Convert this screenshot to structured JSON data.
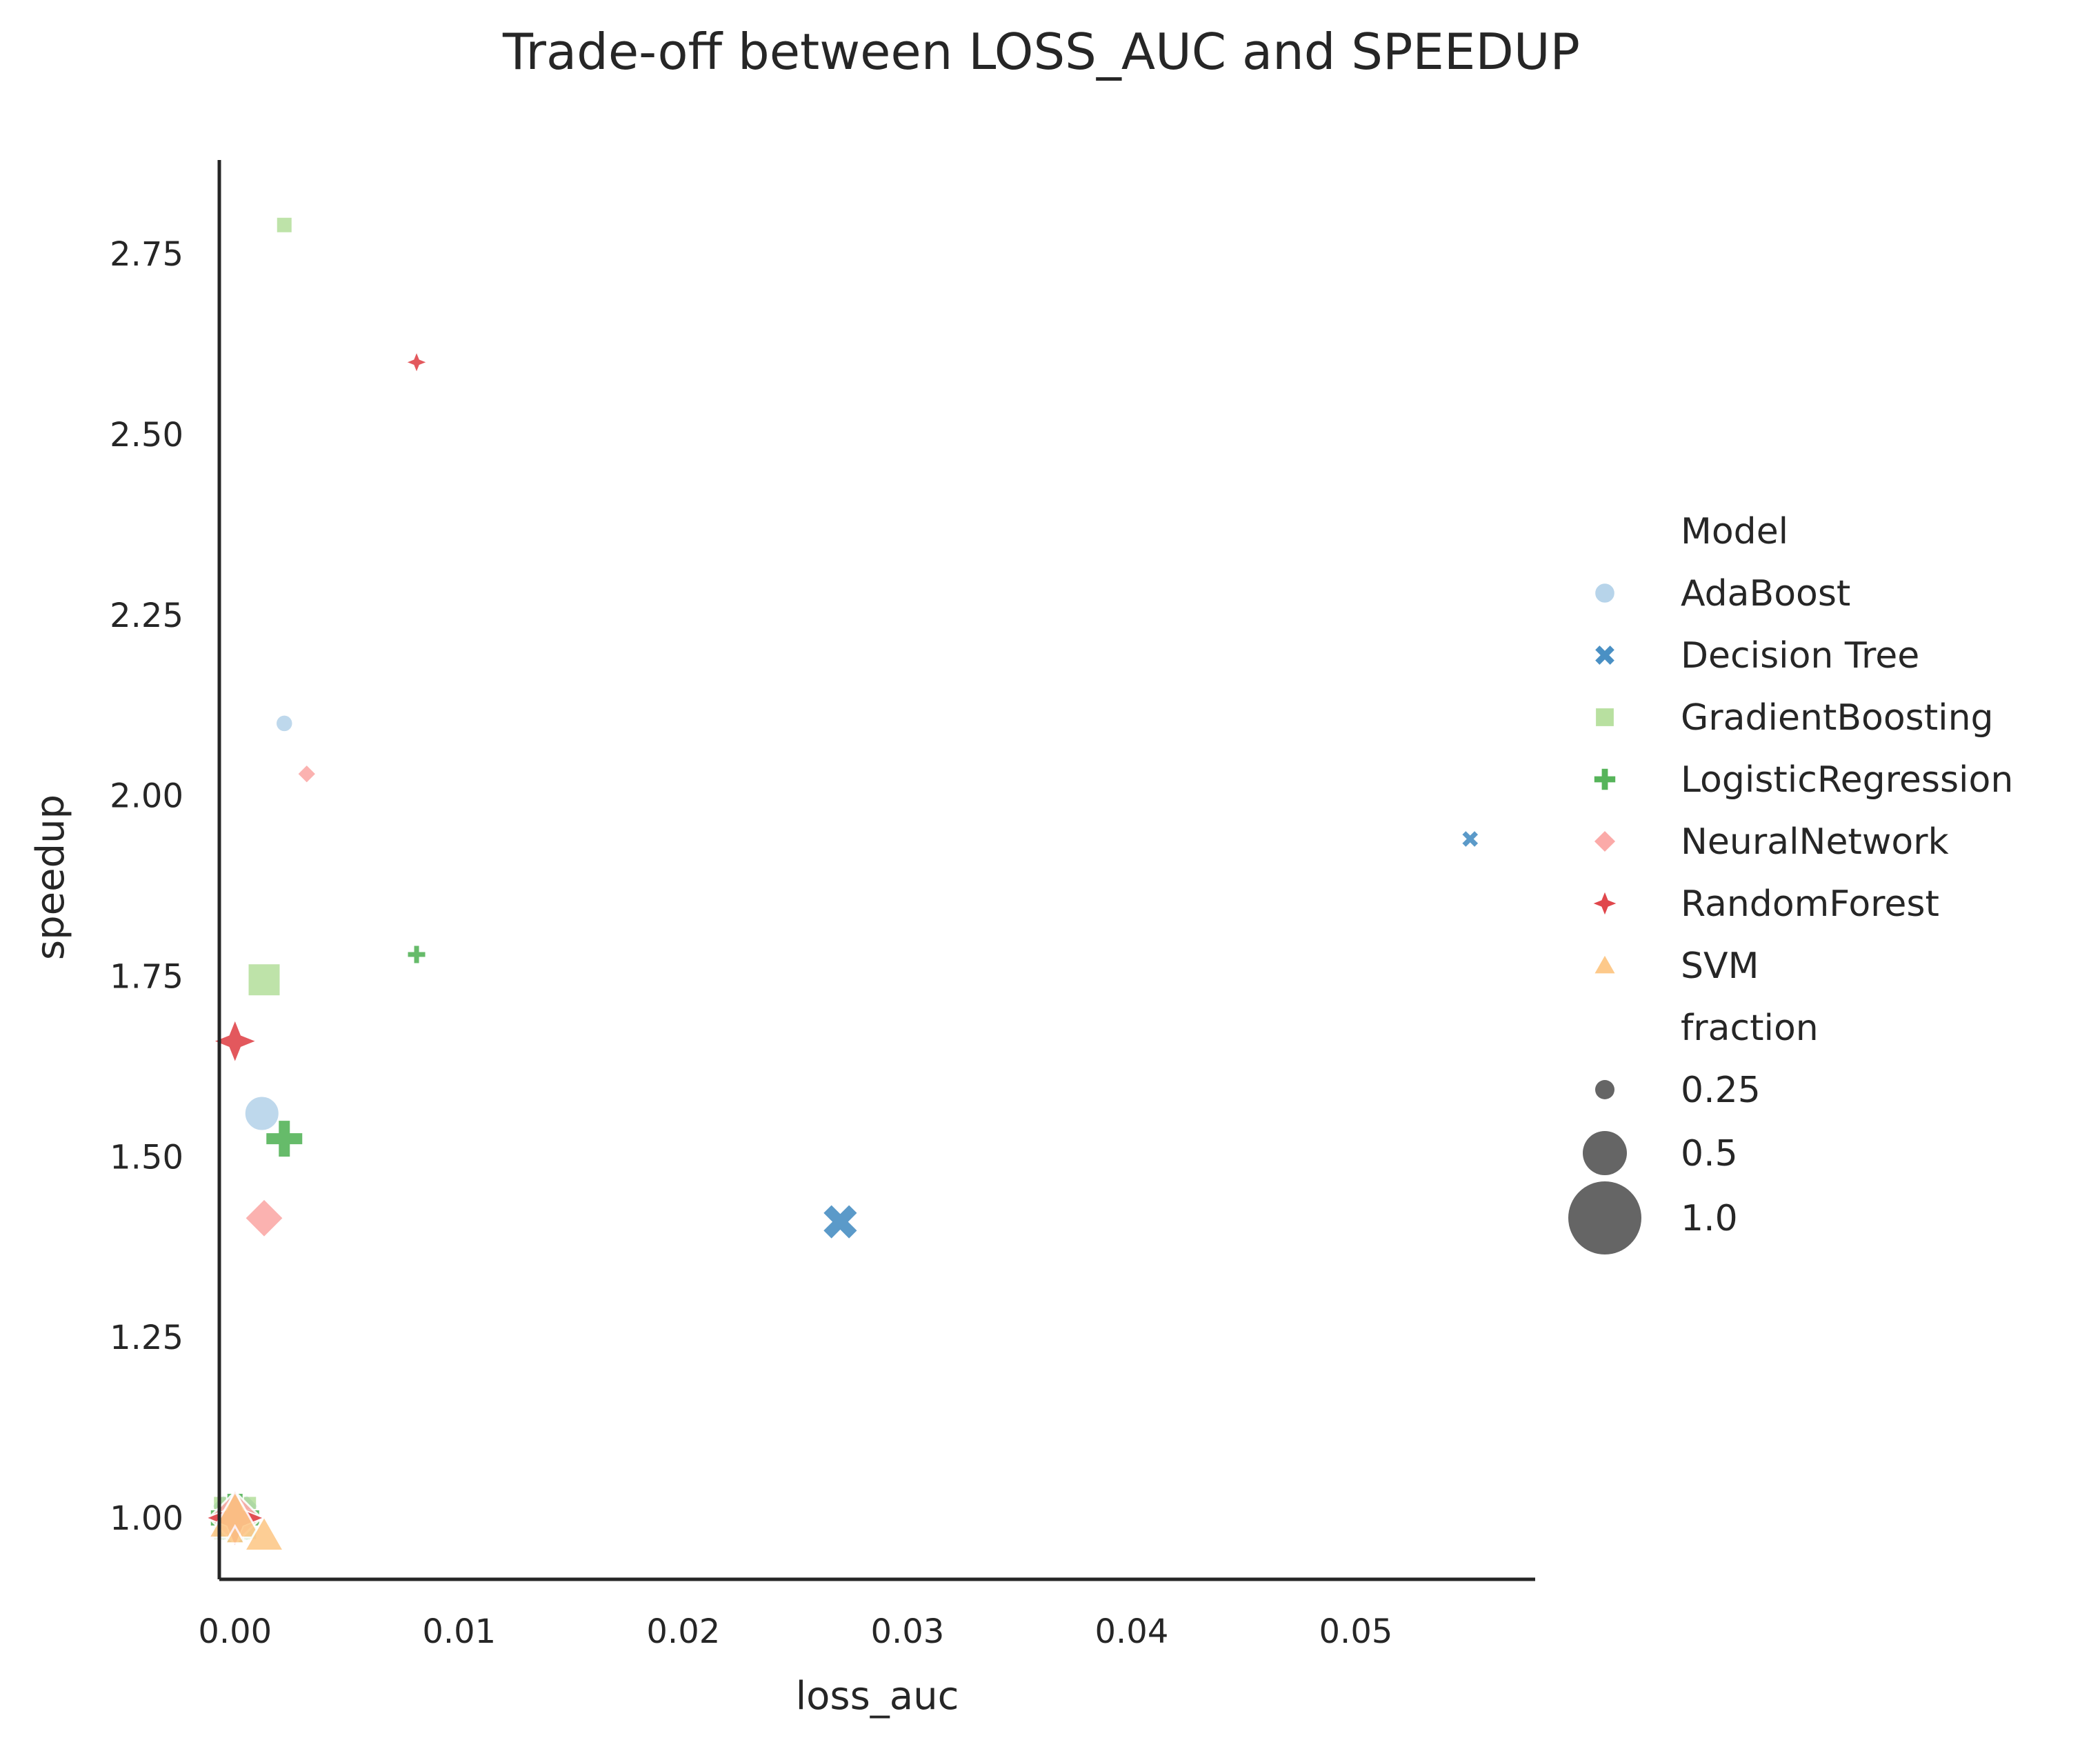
{
  "chart_data": {
    "type": "scatter",
    "title": "Trade-off between LOSS_AUC and SPEEDUP",
    "xlabel": "loss_auc",
    "ylabel": "speedup",
    "xlim": [
      -0.0007,
      0.058
    ],
    "ylim": [
      0.915,
      2.88
    ],
    "xticks": [
      0.0,
      0.01,
      0.02,
      0.03,
      0.04,
      0.05
    ],
    "xtick_labels": [
      "0.00",
      "0.01",
      "0.02",
      "0.03",
      "0.04",
      "0.05"
    ],
    "yticks": [
      1.0,
      1.25,
      1.5,
      1.75,
      2.0,
      2.25,
      2.5,
      2.75
    ],
    "ytick_labels": [
      "1.00",
      "1.25",
      "1.50",
      "1.75",
      "2.00",
      "2.25",
      "2.50",
      "2.75"
    ],
    "grid": false,
    "legend_placement": "right",
    "legend": {
      "hue_title": "Model",
      "size_title": "fraction",
      "size_labels": [
        "0.25",
        "0.5",
        "1.0"
      ],
      "size_values": [
        0.25,
        0.5,
        1.0
      ],
      "size_color": "#656565"
    },
    "series": [
      {
        "name": "AdaBoost",
        "marker": "circle",
        "color": "#b7d4ea",
        "points": [
          {
            "x": 0.0022,
            "y": 2.1,
            "fraction": 0.25
          },
          {
            "x": 0.0012,
            "y": 1.56,
            "fraction": 0.5
          },
          {
            "x": 0.0,
            "y": 1.0,
            "fraction": 1.0
          }
        ]
      },
      {
        "name": "Decision Tree",
        "marker": "x",
        "color": "#4a90c4",
        "points": [
          {
            "x": 0.0551,
            "y": 1.94,
            "fraction": 0.25
          },
          {
            "x": 0.027,
            "y": 1.41,
            "fraction": 0.5
          },
          {
            "x": 0.0,
            "y": 1.0,
            "fraction": 1.0
          }
        ]
      },
      {
        "name": "GradientBoosting",
        "marker": "square",
        "color": "#b8e0a0",
        "points": [
          {
            "x": 0.0022,
            "y": 2.79,
            "fraction": 0.25
          },
          {
            "x": 0.0013,
            "y": 1.745,
            "fraction": 0.5
          },
          {
            "x": 0.0,
            "y": 1.0,
            "fraction": 1.0
          }
        ]
      },
      {
        "name": "LogisticRegression",
        "marker": "plus",
        "color": "#56b45a",
        "points": [
          {
            "x": 0.0081,
            "y": 1.78,
            "fraction": 0.25
          },
          {
            "x": 0.0022,
            "y": 1.525,
            "fraction": 0.5
          },
          {
            "x": 0.0,
            "y": 1.0,
            "fraction": 1.0
          }
        ]
      },
      {
        "name": "NeuralNetwork",
        "marker": "diamond",
        "color": "#fbaaa8",
        "points": [
          {
            "x": 0.0032,
            "y": 2.03,
            "fraction": 0.25
          },
          {
            "x": 0.0013,
            "y": 1.415,
            "fraction": 0.5
          },
          {
            "x": 0.0,
            "y": 1.0,
            "fraction": 1.0
          }
        ]
      },
      {
        "name": "RandomForest",
        "marker": "star4",
        "color": "#e0474c",
        "points": [
          {
            "x": 0.0081,
            "y": 2.6,
            "fraction": 0.25
          },
          {
            "x": 0.0,
            "y": 1.66,
            "fraction": 0.5
          },
          {
            "x": 0.0,
            "y": 1.0,
            "fraction": 1.0
          }
        ]
      },
      {
        "name": "SVM",
        "marker": "triangle",
        "color": "#fdc98a",
        "points": [
          {
            "x": 0.0,
            "y": 1.0,
            "fraction": 1.0
          },
          {
            "x": 0.0013,
            "y": 0.975,
            "fraction": 0.5
          },
          {
            "x": 0.0,
            "y": 0.975,
            "fraction": 0.25
          }
        ]
      }
    ]
  }
}
